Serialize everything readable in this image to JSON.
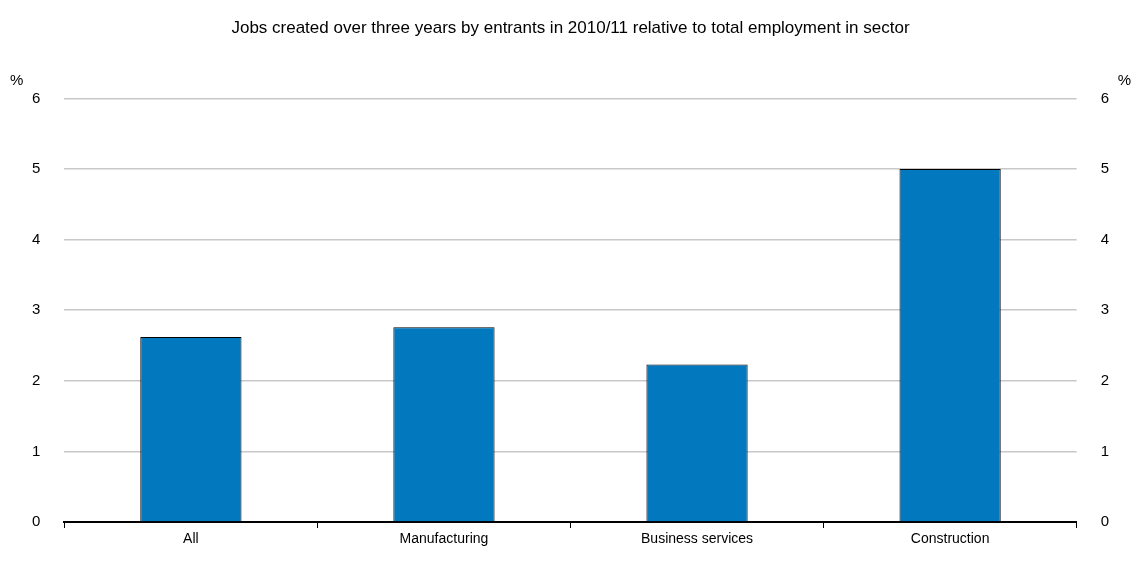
{
  "chart_data": {
    "type": "bar",
    "title": "Jobs created over three years by entrants in 2010/11 relative to total employment in sector",
    "categories": [
      "All",
      "Manufacturing",
      "Business services",
      "Construction"
    ],
    "values": [
      2.62,
      2.76,
      2.23,
      5.0
    ],
    "color": "#0278bf",
    "ylabel": "%",
    "y2label": "%",
    "ylim": [
      0,
      6
    ],
    "yticks": [
      0,
      1,
      2,
      3,
      4,
      5,
      6
    ],
    "y2lim": [
      0,
      6
    ],
    "y2ticks": [
      0,
      1,
      2,
      3,
      4,
      5,
      6
    ],
    "grid": "y",
    "legend": false
  }
}
